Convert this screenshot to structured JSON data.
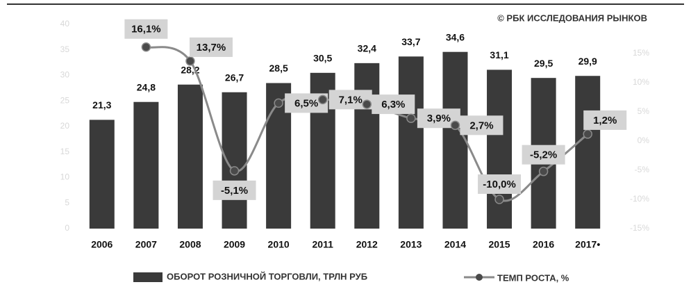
{
  "chart_data": {
    "type": "bar_line",
    "source": "© РБК ИССЛЕДОВАНИЯ РЫНКОВ",
    "categories": [
      "2006",
      "2007",
      "2008",
      "2009",
      "2010",
      "2011",
      "2012",
      "2013",
      "2014",
      "2015",
      "2016",
      "2017•"
    ],
    "series": [
      {
        "name": "ОБОРОТ РОЗНИЧНОЙ ТОРГОВЛИ, ТРЛН РУБ",
        "type": "bar",
        "color": "#3a3a3a",
        "values": [
          21.3,
          24.8,
          28.2,
          26.7,
          28.5,
          30.5,
          32.4,
          33.7,
          34.6,
          31.1,
          29.5,
          29.9
        ],
        "value_labels": [
          "21,3",
          "24,8",
          "28,2",
          "26,7",
          "28,5",
          "30,5",
          "32,4",
          "33,7",
          "34,6",
          "31,1",
          "29,5",
          "29,9"
        ]
      },
      {
        "name": "ТЕМП РОСТА, %",
        "type": "line",
        "axis": "y2",
        "color": "#8a8a8a",
        "marker_color": "#4a4a4a",
        "values": [
          null,
          16.1,
          13.7,
          -5.1,
          6.5,
          7.1,
          6.3,
          3.9,
          2.7,
          -10.0,
          -5.2,
          1.2
        ],
        "value_labels": [
          null,
          "16,1%",
          "13,7%",
          "-5,1%",
          "6,5%",
          "7,1%",
          "6,3%",
          "3,9%",
          "2,7%",
          "-10,0%",
          "-5,2%",
          "1,2%"
        ]
      }
    ],
    "ylim": [
      0,
      40
    ],
    "yticks": [
      0,
      5,
      10,
      15,
      20,
      25,
      30,
      35,
      40
    ],
    "y2lim": [
      -15,
      20
    ],
    "y2ticks": [
      {
        "value": -15,
        "label": "-15%"
      },
      {
        "value": -10,
        "label": "-10%"
      },
      {
        "value": -5,
        "label": "-5%"
      },
      {
        "value": 0,
        "label": "0%"
      },
      {
        "value": 5,
        "label": "5%"
      },
      {
        "value": 10,
        "label": "10%"
      },
      {
        "value": 15,
        "label": "15%"
      }
    ]
  }
}
